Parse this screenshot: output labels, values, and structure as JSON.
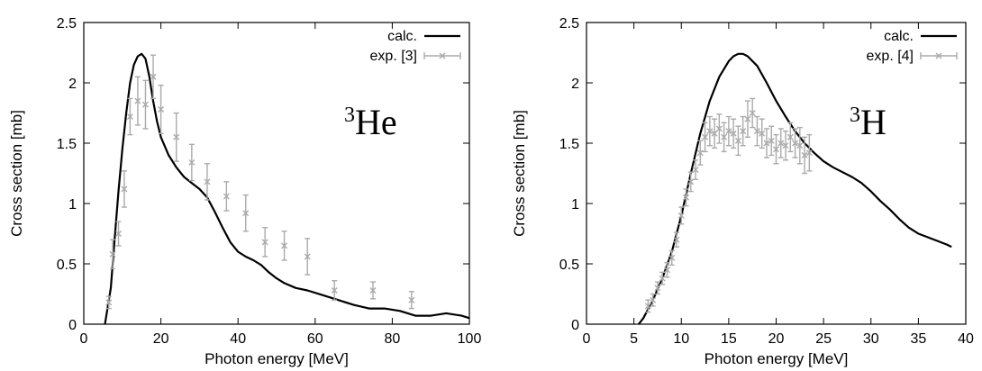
{
  "chart_data": [
    {
      "type": "line",
      "annotation": {
        "sup": "3",
        "main": "He"
      },
      "xlabel": "Photon energy [MeV]",
      "ylabel": "Cross section [mb]",
      "xlim": [
        0,
        100
      ],
      "ylim": [
        0,
        2.5
      ],
      "xticks": [
        0,
        20,
        40,
        60,
        80,
        100
      ],
      "yticks": [
        0,
        0.5,
        1,
        1.5,
        2,
        2.5
      ],
      "ytick_labels": [
        "0",
        "0.5",
        "1",
        "1.5",
        "2",
        "2.5"
      ],
      "legend_position": "top-right",
      "grid": false,
      "series": [
        {
          "name": "calc.",
          "kind": "line",
          "color": "#000000",
          "x": [
            5.5,
            7,
            8,
            9,
            10,
            11,
            12,
            13,
            14,
            15,
            16,
            17,
            18,
            19,
            20,
            22,
            24,
            26,
            28,
            30,
            32,
            34,
            36,
            38,
            40,
            42,
            44,
            46,
            48,
            50,
            52,
            55,
            58,
            62,
            66,
            70,
            74,
            78,
            82,
            86,
            90,
            94,
            98,
            100
          ],
          "y": [
            0.0,
            0.3,
            0.7,
            1.1,
            1.45,
            1.75,
            2.0,
            2.15,
            2.22,
            2.24,
            2.2,
            2.05,
            1.85,
            1.68,
            1.55,
            1.4,
            1.3,
            1.22,
            1.17,
            1.12,
            1.05,
            0.93,
            0.8,
            0.68,
            0.6,
            0.56,
            0.53,
            0.49,
            0.43,
            0.38,
            0.34,
            0.3,
            0.28,
            0.24,
            0.2,
            0.16,
            0.13,
            0.13,
            0.11,
            0.07,
            0.07,
            0.09,
            0.07,
            0.05
          ]
        },
        {
          "name": "exp. [3]",
          "kind": "errorbar",
          "color": "#aaaaaa",
          "x": [
            6.5,
            7.5,
            9,
            10.5,
            12,
            14,
            16,
            18,
            20,
            24,
            28,
            32,
            37,
            42,
            47,
            52,
            58,
            65,
            75,
            85
          ],
          "y": [
            0.18,
            0.58,
            0.75,
            1.12,
            1.72,
            1.85,
            1.82,
            2.05,
            1.78,
            1.55,
            1.34,
            1.18,
            1.06,
            0.92,
            0.68,
            0.65,
            0.56,
            0.28,
            0.28,
            0.2
          ],
          "yerr": [
            0.05,
            0.12,
            0.1,
            0.15,
            0.15,
            0.2,
            0.2,
            0.18,
            0.2,
            0.2,
            0.15,
            0.15,
            0.12,
            0.15,
            0.12,
            0.12,
            0.15,
            0.08,
            0.07,
            0.07
          ]
        }
      ]
    },
    {
      "type": "line",
      "annotation": {
        "sup": "3",
        "main": "H"
      },
      "xlabel": "Photon energy [MeV]",
      "ylabel": "Cross section [mb]",
      "xlim": [
        0,
        40
      ],
      "ylim": [
        0,
        2.5
      ],
      "xticks": [
        0,
        5,
        10,
        15,
        20,
        25,
        30,
        35,
        40
      ],
      "yticks": [
        0,
        0.5,
        1,
        1.5,
        2,
        2.5
      ],
      "ytick_labels": [
        "0",
        "0.5",
        "1",
        "1.5",
        "2",
        "2.5"
      ],
      "legend_position": "top-right",
      "grid": false,
      "series": [
        {
          "name": "calc.",
          "kind": "line",
          "color": "#000000",
          "x": [
            5.5,
            6,
            7,
            8,
            9,
            10,
            11,
            12,
            13,
            14,
            15,
            15.5,
            16,
            16.5,
            17,
            18,
            19,
            20,
            21,
            22,
            23,
            24,
            25,
            26,
            27,
            28,
            29,
            30,
            31,
            32,
            33,
            34,
            35,
            36,
            37,
            38,
            38.5
          ],
          "y": [
            0.0,
            0.05,
            0.2,
            0.38,
            0.6,
            0.9,
            1.25,
            1.58,
            1.85,
            2.05,
            2.18,
            2.22,
            2.24,
            2.24,
            2.22,
            2.14,
            2.0,
            1.85,
            1.72,
            1.6,
            1.5,
            1.42,
            1.35,
            1.3,
            1.26,
            1.22,
            1.17,
            1.1,
            1.02,
            0.95,
            0.87,
            0.8,
            0.75,
            0.72,
            0.69,
            0.66,
            0.64
          ]
        },
        {
          "name": "exp. [4]",
          "kind": "errorbar",
          "color": "#aaaaaa",
          "x": [
            6.5,
            7,
            7.5,
            8,
            8.5,
            9,
            9.5,
            10,
            10.5,
            11,
            11.5,
            12,
            12.5,
            13,
            13.5,
            14,
            14.5,
            15,
            15.5,
            16,
            16.5,
            17,
            17.5,
            18,
            18.5,
            19,
            19.5,
            20,
            20.5,
            21,
            21.5,
            22,
            22.5,
            23,
            23.5
          ],
          "y": [
            0.15,
            0.2,
            0.3,
            0.38,
            0.45,
            0.55,
            0.7,
            0.9,
            1.05,
            1.18,
            1.28,
            1.42,
            1.55,
            1.6,
            1.58,
            1.62,
            1.55,
            1.6,
            1.58,
            1.52,
            1.6,
            1.7,
            1.75,
            1.6,
            1.58,
            1.5,
            1.52,
            1.45,
            1.5,
            1.48,
            1.55,
            1.5,
            1.48,
            1.4,
            1.42
          ],
          "yerr": [
            0.05,
            0.05,
            0.05,
            0.05,
            0.06,
            0.06,
            0.06,
            0.07,
            0.07,
            0.08,
            0.08,
            0.1,
            0.12,
            0.12,
            0.12,
            0.12,
            0.12,
            0.12,
            0.12,
            0.12,
            0.12,
            0.15,
            0.12,
            0.12,
            0.12,
            0.12,
            0.12,
            0.12,
            0.12,
            0.12,
            0.12,
            0.12,
            0.15,
            0.15,
            0.15
          ]
        }
      ]
    }
  ]
}
